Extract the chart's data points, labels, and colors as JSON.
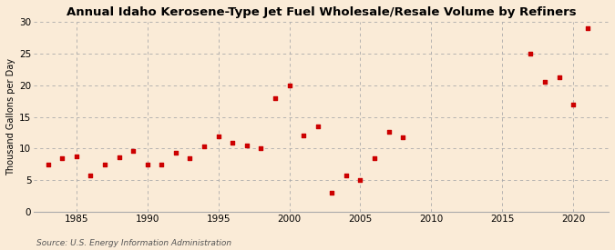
{
  "title": "Annual Idaho Kerosene-Type Jet Fuel Wholesale/Resale Volume by Refiners",
  "ylabel": "Thousand Gallons per Day",
  "source": "Source: U.S. Energy Information Administration",
  "background_color": "#faebd7",
  "marker_color": "#cc0000",
  "xlim": [
    1982,
    2022.5
  ],
  "ylim": [
    0,
    30
  ],
  "yticks": [
    0,
    5,
    10,
    15,
    20,
    25,
    30
  ],
  "xticks": [
    1985,
    1990,
    1995,
    2000,
    2005,
    2010,
    2015,
    2020
  ],
  "years": [
    1983,
    1984,
    1985,
    1986,
    1987,
    1988,
    1989,
    1990,
    1991,
    1992,
    1993,
    1994,
    1995,
    1996,
    1997,
    1998,
    1999,
    2000,
    2001,
    2002,
    2003,
    2004,
    2005,
    2006,
    2007,
    2008,
    2017,
    2018,
    2019,
    2020,
    2021
  ],
  "values": [
    7.5,
    8.5,
    8.8,
    5.8,
    7.5,
    8.7,
    9.7,
    7.5,
    7.5,
    9.3,
    8.5,
    10.3,
    12.0,
    11.0,
    10.5,
    10.0,
    18.0,
    20.0,
    12.1,
    13.5,
    3.1,
    5.7,
    5.0,
    8.5,
    12.7,
    11.8,
    24.9,
    20.5,
    21.2,
    17.0,
    29.0
  ]
}
